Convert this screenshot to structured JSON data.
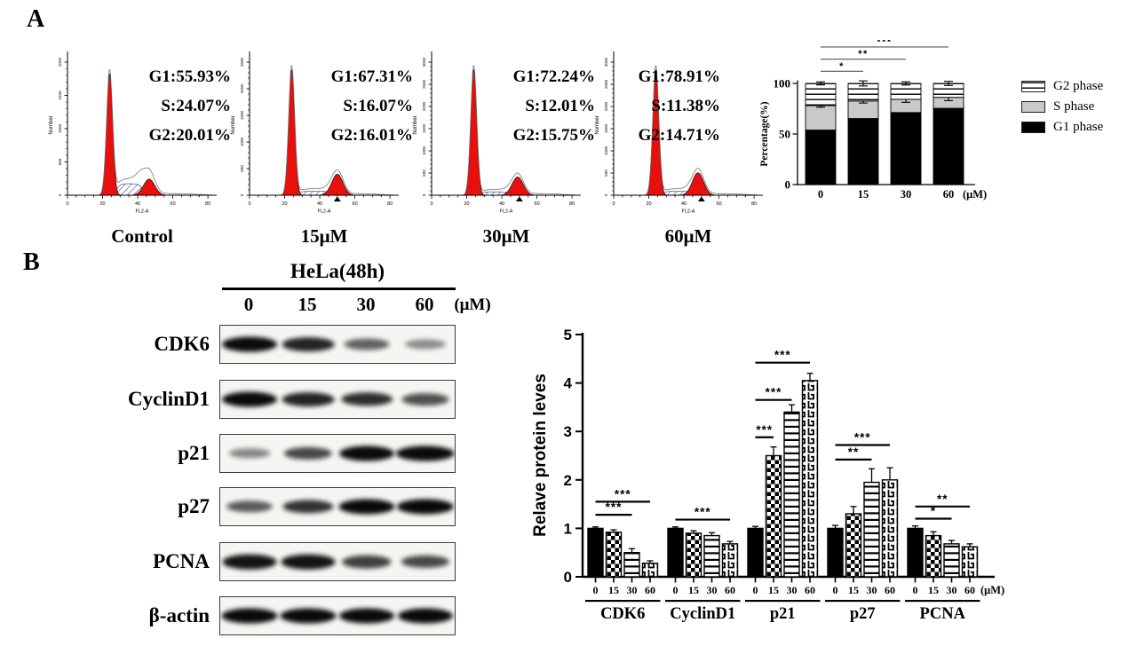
{
  "panelA": {
    "label": "A",
    "flow_plots": [
      {
        "name": "Control",
        "g1": "G1:55.93%",
        "s": "S:24.07%",
        "g2": "G2:20.01%",
        "ylabel": "Number",
        "xlabel": "FL2-A",
        "xticks": [
          0,
          20,
          40,
          60,
          80
        ],
        "yticks": [
          0,
          500,
          1000,
          1500,
          2000
        ],
        "g1h": 0.87,
        "g2c": 46.5,
        "g2h": 0.115,
        "sh": 0.082,
        "bump": 0.055,
        "marker": false
      },
      {
        "name": "15μM",
        "g1": "G1:67.31%",
        "s": "S:16.07%",
        "g2": "G2:16.01%",
        "ylabel": "Number",
        "xlabel": "FL2-A",
        "xticks": [
          0,
          20,
          40,
          60,
          80
        ],
        "yticks": [
          0,
          500,
          1000,
          1500,
          2000,
          2500
        ],
        "g1h": 0.9,
        "g2c": 50,
        "g2h": 0.15,
        "sh": 0.028,
        "bump": 0,
        "marker": true
      },
      {
        "name": "30μM",
        "g1": "G1:72.24%",
        "s": "S:12.01%",
        "g2": "G2:15.75%",
        "ylabel": "Number",
        "xlabel": "FL2-A",
        "xticks": [
          0,
          20,
          40,
          60,
          80
        ],
        "yticks": [
          0,
          500,
          1000,
          1500,
          2000,
          2500,
          3000
        ],
        "g1h": 0.9,
        "g2c": 49,
        "g2h": 0.13,
        "sh": 0.024,
        "bump": 0,
        "marker": true
      },
      {
        "name": "60μM",
        "g1": "G1:78.91%",
        "s": "S:11.38%",
        "g2": "G2:14.71%",
        "ylabel": "Number",
        "xlabel": "FL2-A",
        "xticks": [
          0,
          20,
          40,
          60,
          80
        ],
        "yticks": [
          0,
          500,
          1000,
          1500,
          2000,
          2500,
          3000
        ],
        "g1h": 0.9,
        "g2c": 48,
        "g2h": 0.16,
        "sh": 0.028,
        "bump": 0,
        "marker": true
      }
    ]
  },
  "chart_data": [
    {
      "type": "stacked-bar",
      "ylabel": "Percentage(%)",
      "ylim": [
        0,
        100
      ],
      "yticks": [
        0,
        50,
        100
      ],
      "categories": [
        "0",
        "15",
        "30",
        "60"
      ],
      "x_suffix": "(μM)",
      "legend": [
        "G2 phase",
        "S  phase",
        "G1 phase"
      ],
      "series": [
        {
          "name": "G1 phase",
          "style": "black",
          "values": [
            53.9,
            65.3,
            71.2,
            75.4
          ],
          "errors": [
            1.5,
            2.2,
            4.0,
            3.0
          ]
        },
        {
          "name": "S phase",
          "style": "gray",
          "values": [
            24.2,
            17.3,
            13.1,
            10.8
          ],
          "errors": [
            1.6,
            2.0,
            3.0,
            3.2
          ]
        },
        {
          "name": "G2 phase",
          "style": "hstripes",
          "values": [
            21.9,
            17.4,
            15.7,
            13.8
          ],
          "errors": [
            1.5,
            2.5,
            1.6,
            2.0
          ]
        }
      ],
      "significance": [
        {
          "to": 1,
          "label": "*",
          "y": 112
        },
        {
          "to": 2,
          "label": "**",
          "y": 124
        },
        {
          "to": 3,
          "label": "***",
          "y": 136
        }
      ],
      "legend_position": "right",
      "grid": false
    },
    {
      "type": "grouped-bar",
      "ylabel": "Relave protein leves",
      "ylim": [
        0,
        5
      ],
      "yticks": [
        0,
        1,
        2,
        3,
        4,
        5
      ],
      "groups": [
        "CDK6",
        "CyclinD1",
        "p21",
        "p27",
        "PCNA"
      ],
      "doses": [
        "0",
        "15",
        "30",
        "60"
      ],
      "x_suffix": "(μM)",
      "values": [
        [
          1.0,
          0.92,
          0.5,
          0.28
        ],
        [
          1.0,
          0.9,
          0.85,
          0.68
        ],
        [
          1.0,
          2.5,
          3.4,
          4.05
        ],
        [
          1.0,
          1.3,
          1.95,
          2.0
        ],
        [
          1.0,
          0.85,
          0.68,
          0.62
        ]
      ],
      "errors": [
        [
          0.03,
          0.05,
          0.08,
          0.05
        ],
        [
          0.03,
          0.05,
          0.06,
          0.05
        ],
        [
          0.04,
          0.18,
          0.15,
          0.15
        ],
        [
          0.06,
          0.15,
          0.28,
          0.25
        ],
        [
          0.05,
          0.08,
          0.07,
          0.06
        ]
      ],
      "significance": [
        {
          "group": 0,
          "to": 2,
          "label": "***",
          "y": 1.28
        },
        {
          "group": 0,
          "to": 3,
          "label": "***",
          "y": 1.55
        },
        {
          "group": 1,
          "to": 3,
          "label": "***",
          "y": 1.18
        },
        {
          "group": 2,
          "to": 1,
          "label": "***",
          "y": 2.88
        },
        {
          "group": 2,
          "to": 2,
          "label": "***",
          "y": 3.65
        },
        {
          "group": 2,
          "to": 3,
          "label": "***",
          "y": 4.42
        },
        {
          "group": 3,
          "to": 2,
          "label": "**",
          "y": 2.42
        },
        {
          "group": 3,
          "to": 3,
          "label": "***",
          "y": 2.72
        },
        {
          "group": 4,
          "to": 2,
          "label": "*",
          "y": 1.2
        },
        {
          "group": 4,
          "to": 3,
          "label": "**",
          "y": 1.45
        }
      ],
      "grid": false
    }
  ],
  "panelB": {
    "label": "B",
    "header": "HeLa(48h)",
    "lanes": [
      "0",
      "15",
      "30",
      "60"
    ],
    "lane_suffix": "(μM)",
    "rows": [
      {
        "protein": "CDK6",
        "bands": [
          1.0,
          0.85,
          0.5,
          0.27
        ]
      },
      {
        "protein": "CyclinD1",
        "bands": [
          1.0,
          0.85,
          0.8,
          0.6
        ]
      },
      {
        "protein": "p21",
        "bands": [
          0.3,
          0.65,
          1.0,
          1.2
        ]
      },
      {
        "protein": "p27",
        "bands": [
          0.55,
          0.78,
          1.05,
          1.1
        ]
      },
      {
        "protein": "PCNA",
        "bands": [
          0.95,
          0.95,
          0.7,
          0.65
        ]
      },
      {
        "protein": "β-actin",
        "bands": [
          1.05,
          1.05,
          1.0,
          1.0
        ]
      }
    ]
  },
  "colors": {
    "peak_red": "#e8100c",
    "s_phase_gray": "#c9c9c9",
    "hatch_blue": "#7f8cc8"
  }
}
